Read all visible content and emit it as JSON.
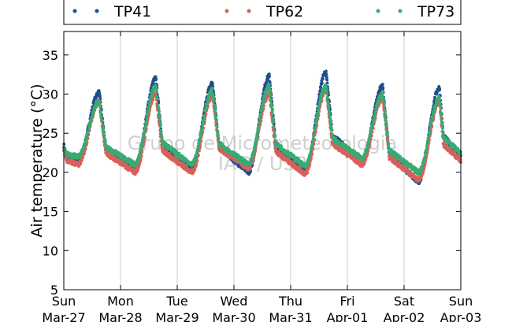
{
  "chart_data": {
    "type": "scatter",
    "xlabel": "",
    "ylabel": "Air temperature (°C)",
    "ylim": [
      5,
      38
    ],
    "xlim_days": [
      0,
      7
    ],
    "y_ticks": [
      5,
      10,
      15,
      20,
      25,
      30,
      35
    ],
    "x_ticks": [
      {
        "day": "Sun",
        "date": "Mar-27"
      },
      {
        "day": "Mon",
        "date": "Mar-28"
      },
      {
        "day": "Tue",
        "date": "Mar-29"
      },
      {
        "day": "Wed",
        "date": "Mar-30"
      },
      {
        "day": "Thu",
        "date": "Mar-31"
      },
      {
        "day": "Fri",
        "date": "Apr-01"
      },
      {
        "day": "Sat",
        "date": "Apr-02"
      },
      {
        "day": "Sun",
        "date": "Apr-03"
      }
    ],
    "grid": "vertical",
    "legend_position": "top",
    "watermark": [
      "Grupo de Micrometeorologia",
      "IAG / USP"
    ],
    "series": [
      {
        "name": "TP41",
        "color": "#1f4e8c",
        "daily_min": [
          21.5,
          20.5,
          20.5,
          20.0,
          20.0,
          21.5,
          18.8
        ],
        "daily_max": [
          30.2,
          32.0,
          31.4,
          32.3,
          32.8,
          31.0,
          30.8
        ],
        "start": 23.5,
        "end": 22.2
      },
      {
        "name": "TP62",
        "color": "#d9605a",
        "daily_min": [
          21.0,
          20.0,
          20.0,
          20.5,
          19.8,
          21.0,
          19.0
        ],
        "daily_max": [
          29.0,
          30.0,
          29.8,
          30.0,
          30.5,
          29.5,
          29.0
        ],
        "start": 22.8,
        "end": 21.5
      },
      {
        "name": "TP73",
        "color": "#3aaa72",
        "daily_min": [
          22.0,
          21.0,
          21.0,
          21.0,
          20.8,
          21.8,
          20.0
        ],
        "daily_max": [
          29.0,
          31.0,
          30.5,
          31.0,
          31.0,
          30.0,
          29.5
        ],
        "start": 23.2,
        "end": 22.5
      }
    ]
  }
}
